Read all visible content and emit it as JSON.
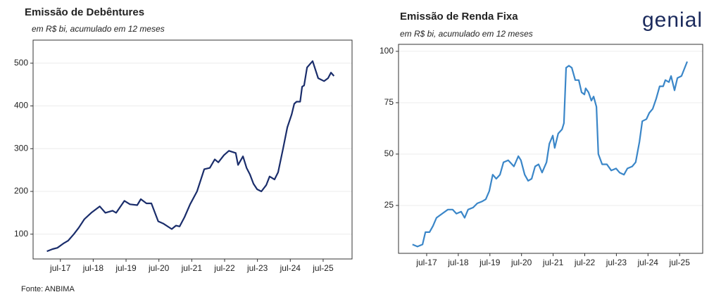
{
  "chart_data": [
    {
      "type": "line",
      "title": "Emissão de Debêntures",
      "subtitle": "em R$ bi, acumulado em 12 meses",
      "color": "#1a2d6b",
      "x": [
        2017.09,
        2017.26,
        2017.41,
        2017.59,
        2017.74,
        2017.91,
        2018.06,
        2018.23,
        2018.44,
        2018.7,
        2018.87,
        2019.09,
        2019.2,
        2019.45,
        2019.62,
        2019.84,
        2019.95,
        2020.12,
        2020.27,
        2020.48,
        2020.63,
        2020.89,
        2021.02,
        2021.13,
        2021.28,
        2021.45,
        2021.66,
        2021.88,
        2022.05,
        2022.2,
        2022.31,
        2022.48,
        2022.63,
        2022.84,
        2022.91,
        2023.06,
        2023.17,
        2023.27,
        2023.38,
        2023.49,
        2023.62,
        2023.77,
        2023.87,
        2024.02,
        2024.13,
        2024.28,
        2024.41,
        2024.54,
        2024.62,
        2024.69,
        2024.8,
        2024.86,
        2024.92,
        2025.01,
        2025.18,
        2025.35,
        2025.53,
        2025.65,
        2025.74,
        2025.83
      ],
      "values": [
        60,
        65,
        68,
        78,
        85,
        100,
        115,
        135,
        150,
        165,
        150,
        155,
        150,
        178,
        170,
        168,
        182,
        172,
        172,
        130,
        125,
        112,
        120,
        118,
        140,
        170,
        200,
        252,
        255,
        275,
        268,
        285,
        295,
        290,
        262,
        282,
        255,
        240,
        218,
        205,
        200,
        215,
        235,
        228,
        245,
        300,
        350,
        380,
        405,
        410,
        410,
        445,
        448,
        490,
        505,
        465,
        458,
        465,
        478,
        470
      ],
      "xlim": [
        2016.67,
        2026.38
      ],
      "ylim": [
        42,
        554
      ],
      "xticks": [
        {
          "value": 2017.5,
          "label": "jul-17"
        },
        {
          "value": 2018.5,
          "label": "jul-18"
        },
        {
          "value": 2019.5,
          "label": "jul-19"
        },
        {
          "value": 2020.5,
          "label": "jul-20"
        },
        {
          "value": 2021.5,
          "label": "jul-21"
        },
        {
          "value": 2022.5,
          "label": "jul-22"
        },
        {
          "value": 2023.5,
          "label": "jul-23"
        },
        {
          "value": 2024.5,
          "label": "jul-24"
        },
        {
          "value": 2025.5,
          "label": "jul-25"
        }
      ],
      "yticks": [
        100,
        200,
        300,
        400,
        500
      ],
      "grid": true
    },
    {
      "type": "line",
      "title": "Emissão de Renda Fixa",
      "subtitle": "em R$ bi, acumulado em 12 meses",
      "color": "#3a86c8",
      "x": [
        2017.05,
        2017.21,
        2017.37,
        2017.46,
        2017.59,
        2017.7,
        2017.81,
        2017.99,
        2018.17,
        2018.32,
        2018.44,
        2018.59,
        2018.7,
        2018.81,
        2018.97,
        2019.1,
        2019.26,
        2019.37,
        2019.48,
        2019.59,
        2019.7,
        2019.82,
        2019.93,
        2020.08,
        2020.26,
        2020.4,
        2020.48,
        2020.6,
        2020.71,
        2020.82,
        2020.93,
        2021.04,
        2021.15,
        2021.29,
        2021.38,
        2021.49,
        2021.55,
        2021.66,
        2021.78,
        2021.84,
        2021.91,
        2022.0,
        2022.09,
        2022.2,
        2022.31,
        2022.4,
        2022.49,
        2022.53,
        2022.62,
        2022.71,
        2022.78,
        2022.87,
        2022.93,
        2023.05,
        2023.2,
        2023.34,
        2023.49,
        2023.6,
        2023.74,
        2023.85,
        2024.0,
        2024.11,
        2024.23,
        2024.32,
        2024.45,
        2024.54,
        2024.65,
        2024.76,
        2024.87,
        2024.98,
        2025.05,
        2025.16,
        2025.23,
        2025.34,
        2025.43,
        2025.56,
        2025.74
      ],
      "values": [
        6,
        5,
        6,
        12,
        12,
        15,
        19,
        21,
        23,
        23,
        21,
        22,
        19,
        23,
        24,
        26,
        27,
        28,
        32,
        40,
        38,
        40,
        46,
        47,
        44,
        49,
        47,
        40,
        37,
        38,
        44,
        45,
        41,
        46,
        55,
        59,
        53,
        60,
        62,
        65,
        92,
        93,
        92,
        86,
        86,
        80,
        79,
        82,
        80,
        76,
        78,
        73,
        50,
        45,
        45,
        42,
        43,
        41,
        40,
        43,
        44,
        46,
        56,
        66,
        67,
        70,
        72,
        77,
        83,
        83,
        86,
        85,
        88,
        81,
        87,
        88,
        95
      ],
      "xlim": [
        2016.61,
        2026.23
      ],
      "ylim": [
        1.7,
        103.4
      ],
      "xticks": [
        {
          "value": 2017.5,
          "label": "jul-17"
        },
        {
          "value": 2018.5,
          "label": "jul-18"
        },
        {
          "value": 2019.5,
          "label": "jul-19"
        },
        {
          "value": 2020.5,
          "label": "jul-20"
        },
        {
          "value": 2021.5,
          "label": "jul-21"
        },
        {
          "value": 2022.5,
          "label": "jul-22"
        },
        {
          "value": 2023.5,
          "label": "jul-23"
        },
        {
          "value": 2024.5,
          "label": "jul-24"
        },
        {
          "value": 2025.5,
          "label": "jul-25"
        }
      ],
      "yticks": [
        25,
        50,
        75,
        100
      ],
      "grid": true
    }
  ],
  "source": "Fonte: ANBIMA",
  "logo": "genial"
}
